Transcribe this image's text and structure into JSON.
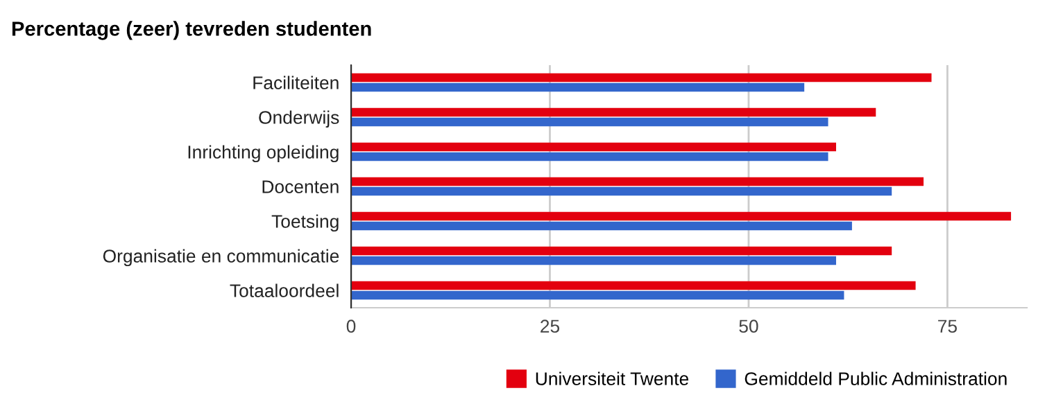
{
  "chart_data": {
    "type": "bar",
    "orientation": "horizontal",
    "title": "Percentage (zeer) tevreden studenten",
    "categories": [
      "Faciliteiten",
      "Onderwijs",
      "Inrichting opleiding",
      "Docenten",
      "Toetsing",
      "Organisatie en communicatie",
      "Totaaloordeel"
    ],
    "series": [
      {
        "name": "Universiteit Twente",
        "color": "#e3000f",
        "values": [
          73,
          66,
          61,
          72,
          83,
          68,
          71
        ]
      },
      {
        "name": "Gemiddeld Public Administration",
        "color": "#3366cc",
        "values": [
          57,
          60,
          60,
          68,
          63,
          61,
          62
        ]
      }
    ],
    "xlim": [
      0,
      85
    ],
    "xticks": [
      0,
      25,
      50,
      75
    ],
    "grid": "x",
    "legend": "bottom"
  }
}
